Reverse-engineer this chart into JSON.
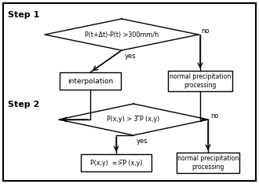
{
  "background_color": "#ffffff",
  "border_color": "#000000",
  "step1_label": "Step 1",
  "step2_label": "Step 2",
  "diamond1_text": "P(t+Δt)-P(t) >300mm/h",
  "diamond2_text": "P(x,y) > 3 ̅P (x,y)",
  "box_interp": "interpolation",
  "box_normal1": "normal precipitation\nprocessing",
  "box_replace": "P(x,y)  =>̅P (x,y)",
  "box_normal2": "normal precipitation\nprocessing",
  "yes_label": "yes",
  "no_label": "no",
  "line_color": "#000000",
  "text_color": "#000000",
  "lw": 1.0
}
